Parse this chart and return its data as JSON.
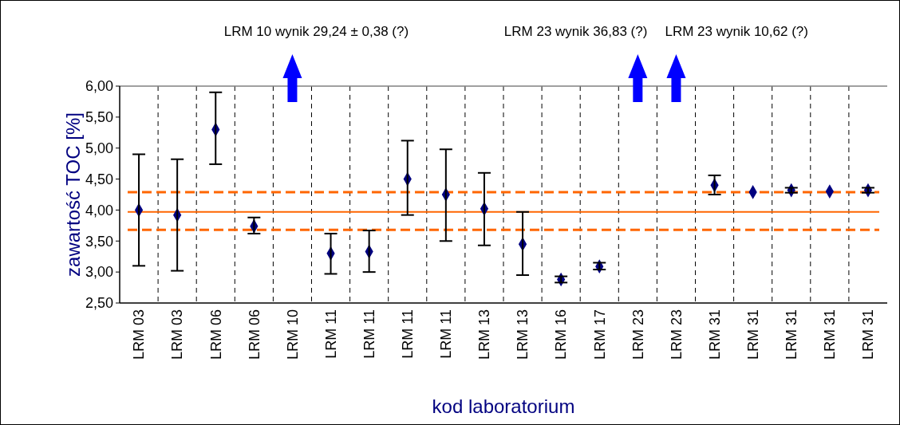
{
  "chart_data": {
    "type": "scatter",
    "xlabel": "kod laboratorium",
    "ylabel": "zawartość TOC [%]",
    "annotations": [
      "LRM 10 wynik 29,24 ± 0,38 (?)",
      "LRM 23 wynik 36,83 (?)",
      "LRM 23 wynik 10,62 (?)"
    ],
    "categories": [
      "LRM 03",
      "LRM 03",
      "LRM 06",
      "LRM 06",
      "LRM 10",
      "LRM 11",
      "LRM 11",
      "LRM 11",
      "LRM 11",
      "LRM 13",
      "LRM 13",
      "LRM 16",
      "LRM 17",
      "LRM 23",
      "LRM 23",
      "LRM 31",
      "LRM 31",
      "LRM 31",
      "LRM 31",
      "LRM 31"
    ],
    "series": [
      {
        "color": "#000080",
        "values": [
          4.0,
          3.92,
          5.3,
          3.74,
          null,
          3.3,
          3.33,
          4.5,
          4.25,
          4.02,
          3.45,
          2.88,
          3.09,
          null,
          null,
          4.4,
          4.29,
          4.32,
          4.3,
          4.32
        ],
        "errors": [
          [
            3.1,
            4.9
          ],
          [
            3.02,
            4.82
          ],
          [
            4.74,
            5.9
          ],
          [
            3.62,
            3.88
          ],
          null,
          [
            2.97,
            3.62
          ],
          [
            3.0,
            3.67
          ],
          [
            3.92,
            5.12
          ],
          [
            3.5,
            4.98
          ],
          [
            3.43,
            4.6
          ],
          [
            2.95,
            3.97
          ],
          [
            2.83,
            2.93
          ],
          [
            3.04,
            3.15
          ],
          null,
          null,
          [
            4.25,
            4.56
          ],
          null,
          [
            4.28,
            4.36
          ],
          null,
          [
            4.28,
            4.36
          ]
        ]
      }
    ],
    "ref_lines": [
      {
        "axis": "y",
        "value": 3.97,
        "color": "#ff6600",
        "line_style": "solid"
      },
      {
        "axis": "y",
        "value": 4.29,
        "color": "#ff6600",
        "line_style": "dashed"
      },
      {
        "axis": "y",
        "value": 3.68,
        "color": "#ff6600",
        "line_style": "dashed"
      }
    ],
    "ylim": [
      2.5,
      6.0
    ],
    "yticks": [
      {
        "value": 2.5,
        "label": "2,50"
      },
      {
        "value": 3,
        "label": "3,00"
      },
      {
        "value": 3.5,
        "label": "3,50"
      },
      {
        "value": 4,
        "label": "4,00"
      },
      {
        "value": 4.5,
        "label": "4,50"
      },
      {
        "value": 5,
        "label": "5,00"
      },
      {
        "value": 5.5,
        "label": "5,50"
      },
      {
        "value": 6,
        "label": "6,00"
      }
    ],
    "grid": "x",
    "marker": "diamond"
  }
}
